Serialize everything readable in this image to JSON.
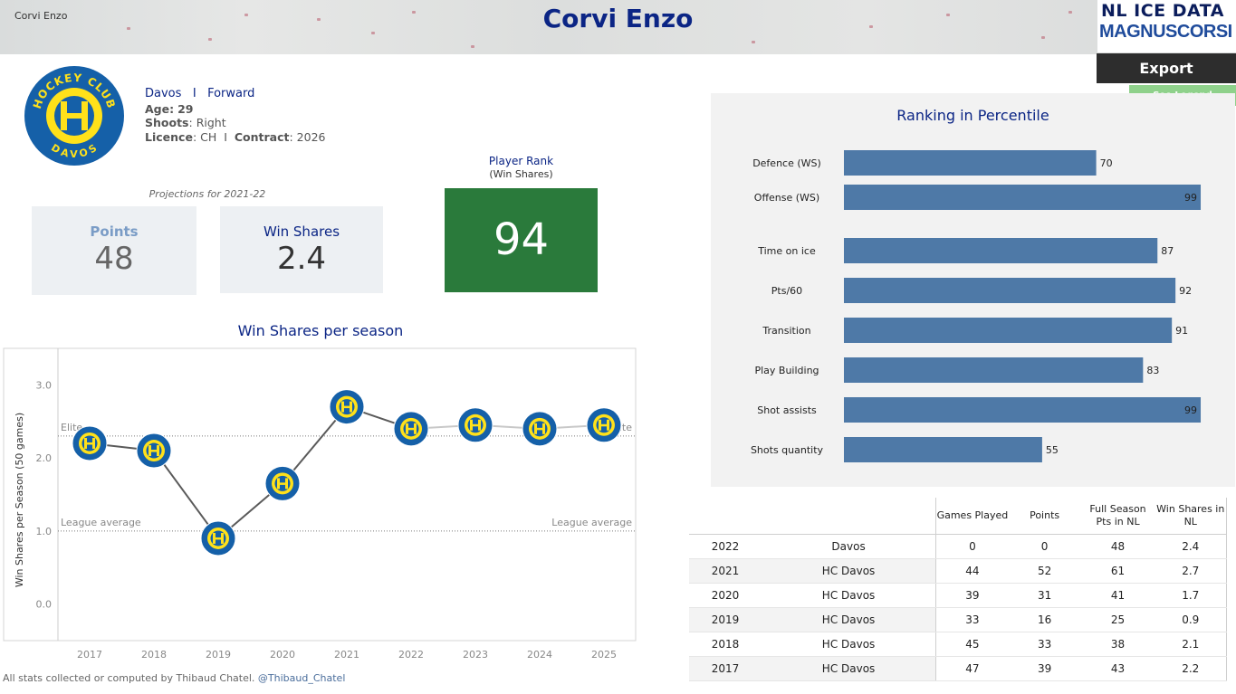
{
  "header": {
    "small_name": "Corvi Enzo",
    "title": "Corvi Enzo",
    "brand_line1": "NL ICE DATA",
    "brand_line2": "MAGNUSCORSI",
    "export_label": "Export",
    "legend_label": "See Legend"
  },
  "player": {
    "team": "Davos",
    "separator": "I",
    "position": "Forward",
    "age_label": "Age:",
    "age": "29",
    "shoots_label": "Shoots",
    "shoots": "Right",
    "licence_label": "Licence",
    "licence": "CH",
    "contract_label": "Contract",
    "contract": "2026",
    "logo_text_top": "HOCKEY CLUB",
    "logo_text_bottom": "DAVOS"
  },
  "projections": {
    "label": "Projections for 2021-22",
    "points_label": "Points",
    "points_value": "48",
    "ws_label": "Win Shares",
    "ws_value": "2.4"
  },
  "player_rank": {
    "title": "Player Rank",
    "subtitle": "(Win Shares)",
    "value": "94",
    "color": "#2a7a3b"
  },
  "footer": {
    "text": "All stats collected or computed by Thibaud Chatel.",
    "handle": "@Thibaud_Chatel"
  },
  "colors": {
    "title_navy": "#0b2585",
    "bar_blue": "#4e79a7",
    "logo_blue": "#1560a8",
    "logo_yellow": "#ffe11a"
  },
  "chart_data": [
    {
      "type": "line",
      "title": "Win Shares per season",
      "ylabel": "Win Shares per Season (50 games)",
      "x": [
        "2017",
        "2018",
        "2019",
        "2020",
        "2021",
        "2022",
        "2023",
        "2024",
        "2025"
      ],
      "series": [
        {
          "values": [
            2.2,
            2.1,
            0.9,
            1.65,
            2.7,
            2.4,
            2.45,
            2.4,
            2.45
          ]
        }
      ],
      "solid_segment_count": 5,
      "yticks": [
        "0.0",
        "1.0",
        "2.0",
        "3.0"
      ],
      "ylim": [
        -0.5,
        3.5
      ],
      "reference_lines": [
        {
          "value": 2.3,
          "label_left": "Elite",
          "label_right": "Elite"
        },
        {
          "value": 1.0,
          "label_left": "League average",
          "label_right": "League average"
        }
      ],
      "grid": false
    },
    {
      "type": "bar",
      "orientation": "horizontal",
      "title": "Ranking in Percentile",
      "categories": [
        "Defence (WS)",
        "Offense (WS)",
        "Time on ice",
        "Pts/60",
        "Transition",
        "Play Building",
        "Shot assists",
        "Shots quantity"
      ],
      "values": [
        70,
        99,
        87,
        92,
        91,
        83,
        99,
        55
      ],
      "label_inside": [
        false,
        true,
        false,
        false,
        false,
        false,
        true,
        false
      ],
      "xlim": [
        0,
        100
      ]
    },
    {
      "type": "table",
      "columns": [
        "",
        "",
        "Games Played",
        "Points",
        "Full Season Pts in NL",
        "Win Shares in NL"
      ],
      "rows": [
        [
          "2022",
          "Davos",
          "0",
          "0",
          "48",
          "2.4"
        ],
        [
          "2021",
          "HC Davos",
          "44",
          "52",
          "61",
          "2.7"
        ],
        [
          "2020",
          "HC Davos",
          "39",
          "31",
          "41",
          "1.7"
        ],
        [
          "2019",
          "HC Davos",
          "33",
          "16",
          "25",
          "0.9"
        ],
        [
          "2018",
          "HC Davos",
          "45",
          "33",
          "38",
          "2.1"
        ],
        [
          "2017",
          "HC Davos",
          "47",
          "39",
          "43",
          "2.2"
        ]
      ]
    }
  ]
}
